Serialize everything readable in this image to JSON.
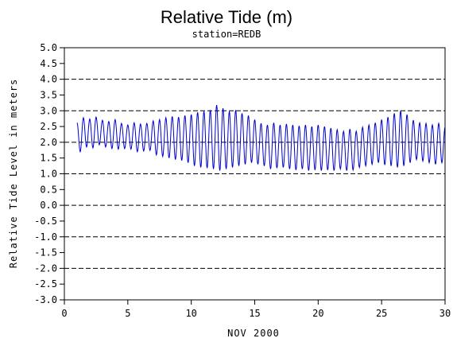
{
  "chart_data": {
    "type": "line",
    "title": "Relative Tide (m)",
    "subtitle": "station=REDB",
    "xlabel": "NOV 2000",
    "ylabel": "Relative Tide Level in meters",
    "xlim": [
      0,
      30
    ],
    "ylim": [
      -3.0,
      5.0
    ],
    "x_ticks": [
      0,
      5,
      10,
      15,
      20,
      25,
      30
    ],
    "y_ticks": [
      5.0,
      4.5,
      4.0,
      3.5,
      3.0,
      2.5,
      2.0,
      1.5,
      1.0,
      0.5,
      0.0,
      -0.5,
      -1.0,
      -1.5,
      -2.0,
      -2.5,
      -3.0
    ],
    "y_tick_labels": [
      "5.0",
      "4.5",
      "4.0",
      "3.5",
      "3.0",
      "2.5",
      "2.0",
      "1.5",
      "1.0",
      "0.5",
      "0.0",
      "-0.5",
      "-1.0",
      "-1.5",
      "-2.0",
      "-2.5",
      "-3.0"
    ],
    "gridlines_y": [
      5.0,
      4.0,
      3.0,
      2.0,
      1.0,
      0.0,
      -1.0,
      -2.0,
      -3.0
    ],
    "grid_style": "dashed horizontal at whole meters",
    "line_color": "#0000cc",
    "series": [
      {
        "x": [
          1.0,
          1.25,
          1.5,
          1.75,
          2.0,
          2.25,
          2.5,
          2.75,
          3.0,
          3.25,
          3.5,
          3.75,
          4.0,
          4.25,
          4.5,
          4.75,
          5.0,
          5.25,
          5.5,
          5.75,
          6.0,
          6.25,
          6.5,
          6.75,
          7.0,
          7.25,
          7.5,
          7.75,
          8.0,
          8.25,
          8.5,
          8.75,
          9.0,
          9.25,
          9.5,
          9.75,
          10.0,
          10.25,
          10.5,
          10.75,
          11.0,
          11.25,
          11.5,
          11.75,
          12.0,
          12.25,
          12.5,
          12.75,
          13.0,
          13.25,
          13.5,
          13.75,
          14.0,
          14.25,
          14.5,
          14.75,
          15.0,
          15.25,
          15.5,
          15.75,
          16.0,
          16.25,
          16.5,
          16.75,
          17.0,
          17.25,
          17.5,
          17.75,
          18.0,
          18.25,
          18.5,
          18.75,
          19.0,
          19.25,
          19.5,
          19.75,
          20.0,
          20.25,
          20.5,
          20.75,
          21.0,
          21.25,
          21.5,
          21.75,
          22.0,
          22.25,
          22.5,
          22.75,
          23.0,
          23.25,
          23.5,
          23.75,
          24.0,
          24.25,
          24.5,
          24.75,
          25.0,
          25.25,
          25.5,
          25.75,
          26.0,
          26.25,
          26.5,
          26.75,
          27.0,
          27.25,
          27.5,
          27.75,
          28.0,
          28.25,
          28.5,
          28.75,
          29.0,
          29.25,
          29.5,
          29.75,
          30.0
        ],
        "y": [
          2.62,
          1.7,
          2.78,
          1.85,
          2.74,
          1.82,
          2.8,
          1.92,
          2.7,
          1.85,
          2.66,
          1.8,
          2.72,
          1.78,
          2.6,
          1.8,
          2.55,
          1.78,
          2.62,
          1.7,
          2.58,
          1.72,
          2.6,
          1.74,
          2.68,
          1.6,
          2.72,
          1.55,
          2.78,
          1.5,
          2.82,
          1.45,
          2.8,
          1.42,
          2.85,
          1.35,
          2.88,
          1.25,
          2.95,
          1.2,
          2.98,
          1.18,
          3.02,
          1.15,
          3.18,
          1.1,
          3.08,
          1.15,
          2.98,
          1.2,
          3.02,
          1.25,
          2.92,
          1.3,
          2.85,
          1.35,
          2.72,
          1.3,
          2.6,
          1.25,
          2.55,
          1.15,
          2.62,
          1.18,
          2.55,
          1.2,
          2.58,
          1.15,
          2.55,
          1.12,
          2.52,
          1.15,
          2.55,
          1.1,
          2.5,
          1.12,
          2.55,
          1.1,
          2.5,
          1.12,
          2.45,
          1.1,
          2.4,
          1.15,
          2.35,
          1.1,
          2.42,
          1.12,
          2.35,
          1.2,
          2.48,
          1.25,
          2.55,
          1.3,
          2.62,
          1.35,
          2.72,
          1.28,
          2.8,
          1.25,
          2.92,
          1.2,
          3.0,
          1.25,
          2.88,
          1.35,
          2.7,
          1.45,
          2.62,
          1.4,
          2.6,
          1.35,
          2.55,
          1.3,
          2.6,
          1.35,
          2.48
        ]
      }
    ]
  }
}
